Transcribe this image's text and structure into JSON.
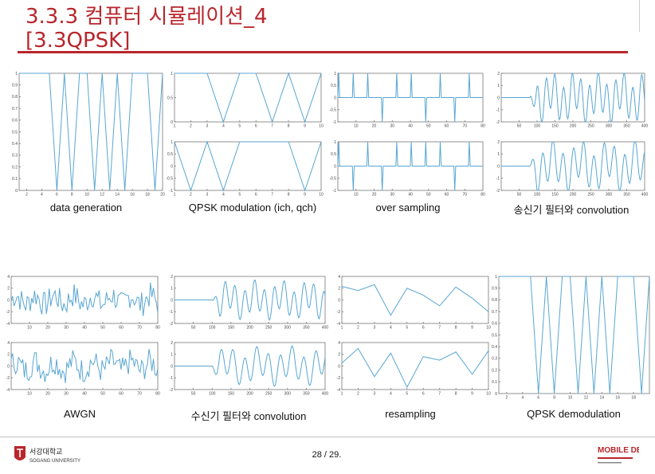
{
  "header": {
    "title_line1": "3.3.3 컴퓨터 시뮬레이션_4",
    "title_line2": "[3.3QPSK]",
    "accent_color": "#b8262c"
  },
  "captions": {
    "data_generation": "data generation",
    "qpsk_modulation": "QPSK modulation (ich, qch)",
    "over_sampling": "over sampling",
    "tx_filter": "송신기 필터와 convolution",
    "awgn": "AWGN",
    "rx_filter": "수신기 필터와 convolution",
    "resampling": "resampling",
    "qpsk_demodulation": "QPSK demodulation"
  },
  "footer": {
    "page_number": "28 / 29.",
    "university_icon": "sogang-university-logo",
    "lab_icon": "mobile-device-lab-logo",
    "university_text": "서강대학교",
    "university_en": "SOGANG UNIVERSITY",
    "lab_text": "MOBILE DEVICE"
  },
  "chart_data": [
    {
      "name": "data-generation",
      "type": "line",
      "ylim": [
        0,
        1
      ],
      "xlim": [
        1,
        20
      ],
      "yticks": [
        "0",
        "0.1",
        "0.2",
        "0.3",
        "0.4",
        "0.5",
        "0.6",
        "0.7",
        "0.8",
        "0.9",
        "1"
      ],
      "xticks": [
        "2",
        "4",
        "6",
        "8",
        "10",
        "12",
        "14",
        "16",
        "18",
        "20"
      ],
      "x": [
        1,
        2,
        3,
        4,
        5,
        6,
        7,
        8,
        9,
        10,
        11,
        12,
        13,
        14,
        15,
        16,
        17,
        18,
        19,
        20
      ],
      "y": [
        1,
        1,
        1,
        1,
        1,
        0,
        1,
        0,
        1,
        1,
        0,
        1,
        0,
        1,
        0,
        1,
        1,
        1,
        0,
        1
      ]
    },
    {
      "name": "qpsk-ich",
      "type": "line",
      "ylim": [
        0,
        1
      ],
      "xlim": [
        1,
        10
      ],
      "yticks": [
        "0",
        "0.5",
        "1"
      ],
      "xticks": [
        "1",
        "2",
        "3",
        "4",
        "5",
        "6",
        "7",
        "8",
        "9",
        "10"
      ],
      "x": [
        1,
        2,
        3,
        4,
        5,
        6,
        7,
        8,
        9,
        10
      ],
      "y": [
        1,
        1,
        1,
        0,
        1,
        1,
        0,
        1,
        0,
        1
      ]
    },
    {
      "name": "qpsk-qch",
      "type": "line",
      "ylim": [
        -1,
        1
      ],
      "xlim": [
        1,
        10
      ],
      "yticks": [
        "-1",
        "-0.5",
        "0",
        "0.5",
        "1"
      ],
      "xticks": [
        "1",
        "2",
        "3",
        "4",
        "5",
        "6",
        "7",
        "8",
        "9",
        "10"
      ],
      "x": [
        1,
        2,
        3,
        4,
        5,
        6,
        7,
        8,
        9,
        10
      ],
      "y": [
        1,
        -1,
        1,
        -1,
        1,
        1,
        1,
        1,
        -1,
        1
      ]
    },
    {
      "name": "oversample-ich",
      "type": "line",
      "ylim": [
        -1,
        1
      ],
      "xlim": [
        0,
        80
      ],
      "yticks": [
        "-1",
        "-0.5",
        "0",
        "0.5",
        "1"
      ],
      "xticks": [
        "10",
        "20",
        "30",
        "40",
        "50",
        "60",
        "70",
        "80"
      ],
      "x": [
        0,
        8,
        16,
        24,
        32,
        40,
        48,
        56,
        64,
        72
      ],
      "y": [
        1,
        1,
        1,
        -1,
        1,
        1,
        -1,
        1,
        -1,
        1
      ]
    },
    {
      "name": "oversample-qch",
      "type": "line",
      "ylim": [
        -1,
        1
      ],
      "xlim": [
        0,
        80
      ],
      "yticks": [
        "-1",
        "-0.5",
        "0",
        "0.5",
        "1"
      ],
      "xticks": [
        "10",
        "20",
        "30",
        "40",
        "50",
        "60",
        "70",
        "80"
      ],
      "x": [
        0,
        8,
        16,
        24,
        32,
        40,
        48,
        56,
        64,
        72
      ],
      "y": [
        1,
        -1,
        1,
        -1,
        1,
        1,
        1,
        1,
        -1,
        1
      ]
    },
    {
      "name": "tx-filter-ich",
      "type": "line",
      "ylim": [
        -2,
        2
      ],
      "xlim": [
        0,
        400
      ],
      "yticks": [
        "-2",
        "-1",
        "0",
        "1",
        "2"
      ],
      "xticks": [
        "50",
        "100",
        "150",
        "200",
        "250",
        "300",
        "350",
        "400"
      ]
    },
    {
      "name": "tx-filter-qch",
      "type": "line",
      "ylim": [
        -2,
        2
      ],
      "xlim": [
        0,
        400
      ],
      "yticks": [
        "-2",
        "-1",
        "0",
        "1",
        "2"
      ],
      "xticks": [
        "50",
        "100",
        "150",
        "200",
        "250",
        "300",
        "350",
        "400"
      ]
    },
    {
      "name": "awgn-ich",
      "type": "line",
      "ylim": [
        -4,
        4
      ],
      "xlim": [
        0,
        80
      ],
      "yticks": [
        "-4",
        "-2",
        "0",
        "2",
        "4"
      ],
      "xticks": [
        "10",
        "20",
        "30",
        "40",
        "50",
        "60",
        "70",
        "80"
      ]
    },
    {
      "name": "awgn-qch",
      "type": "line",
      "ylim": [
        -4,
        4
      ],
      "xlim": [
        0,
        80
      ],
      "yticks": [
        "-4",
        "-2",
        "0",
        "2",
        "4"
      ],
      "xticks": [
        "10",
        "20",
        "30",
        "40",
        "50",
        "60",
        "70",
        "80"
      ]
    },
    {
      "name": "rx-filter-ich",
      "type": "line",
      "ylim": [
        -2,
        2
      ],
      "xlim": [
        0,
        400
      ],
      "yticks": [
        "-2",
        "-1",
        "0",
        "1",
        "2"
      ],
      "xticks": [
        "50",
        "100",
        "150",
        "200",
        "250",
        "300",
        "350",
        "400"
      ]
    },
    {
      "name": "rx-filter-qch",
      "type": "line",
      "ylim": [
        -2,
        2
      ],
      "xlim": [
        0,
        400
      ],
      "yticks": [
        "-2",
        "-1",
        "0",
        "1",
        "2"
      ],
      "xticks": [
        "50",
        "100",
        "150",
        "200",
        "250",
        "300",
        "350",
        "400"
      ]
    },
    {
      "name": "resample-ich",
      "type": "line",
      "ylim": [
        -4,
        4
      ],
      "xlim": [
        1,
        10
      ],
      "yticks": [
        "-4",
        "-2",
        "0",
        "2",
        "4"
      ],
      "xticks": [
        "1",
        "2",
        "3",
        "4",
        "5",
        "6",
        "7",
        "8",
        "9",
        "10"
      ],
      "x": [
        1,
        2,
        3,
        4,
        5,
        6,
        7,
        8,
        9,
        10
      ],
      "y": [
        2.3,
        1.6,
        2.6,
        -2.6,
        2.0,
        0.8,
        -1.0,
        2.2,
        0.3,
        -2.0
      ]
    },
    {
      "name": "resample-qch",
      "type": "line",
      "ylim": [
        -4,
        4
      ],
      "xlim": [
        1,
        10
      ],
      "yticks": [
        "-4",
        "-2",
        "0",
        "2",
        "4"
      ],
      "xticks": [
        "1",
        "2",
        "3",
        "4",
        "5",
        "6",
        "7",
        "8",
        "9",
        "10"
      ],
      "x": [
        1,
        2,
        3,
        4,
        5,
        6,
        7,
        8,
        9,
        10
      ],
      "y": [
        0.5,
        3.0,
        -1.8,
        2.2,
        -3.6,
        1.6,
        1.0,
        2.4,
        -1.4,
        2.6
      ]
    },
    {
      "name": "demodulation",
      "type": "line",
      "ylim": [
        0,
        1
      ],
      "xlim": [
        1,
        20
      ],
      "yticks": [
        "0",
        "0.1",
        "0.2",
        "0.3",
        "0.4",
        "0.5",
        "0.6",
        "0.7",
        "0.8",
        "0.9",
        "1"
      ],
      "xticks": [
        "2",
        "4",
        "6",
        "8",
        "10",
        "12",
        "14",
        "16",
        "18"
      ],
      "x": [
        1,
        2,
        3,
        4,
        5,
        6,
        7,
        8,
        9,
        10,
        11,
        12,
        13,
        14,
        15,
        16,
        17,
        18,
        19,
        20
      ],
      "y": [
        1,
        1,
        1,
        1,
        1,
        0,
        1,
        0,
        1,
        1,
        0,
        1,
        0,
        1,
        0,
        1,
        1,
        1,
        0,
        1
      ]
    }
  ]
}
